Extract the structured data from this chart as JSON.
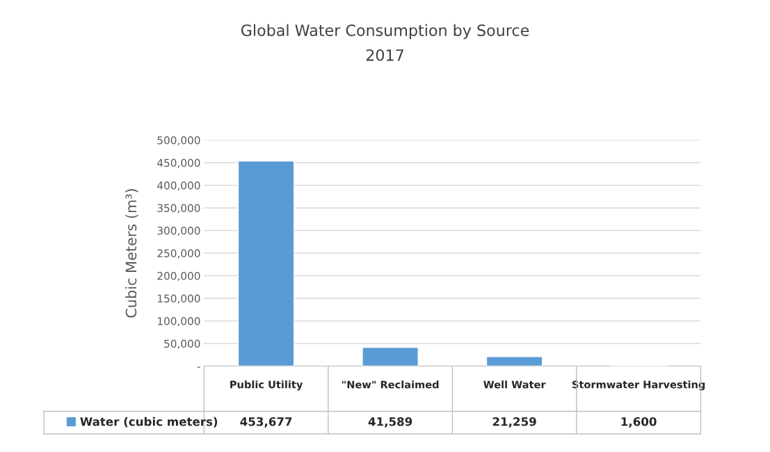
{
  "chart_data": {
    "type": "bar",
    "title": "Global Water Consumption by Source",
    "subtitle": "2017",
    "ylabel": "Cubic Meters (m³)",
    "categories": [
      "Public Utility",
      "\"New\" Reclaimed",
      "Well Water",
      "Stormwater Harvesting"
    ],
    "series": [
      {
        "name": "Water (cubic meters)",
        "color": "#5b9bd5",
        "values": [
          453677,
          41589,
          21259,
          1600
        ],
        "value_labels": [
          "453,677",
          "41,589",
          "21,259",
          "1,600"
        ]
      }
    ],
    "ylim": [
      0,
      500000
    ],
    "yticks": [
      {
        "value": 0,
        "label": "-"
      },
      {
        "value": 50000,
        "label": "50,000"
      },
      {
        "value": 100000,
        "label": "100,000"
      },
      {
        "value": 150000,
        "label": "150,000"
      },
      {
        "value": 200000,
        "label": "200,000"
      },
      {
        "value": 250000,
        "label": "250,000"
      },
      {
        "value": 300000,
        "label": "300,000"
      },
      {
        "value": 350000,
        "label": "350,000"
      },
      {
        "value": 400000,
        "label": "400,000"
      },
      {
        "value": 450000,
        "label": "450,000"
      },
      {
        "value": 500000,
        "label": "500,000"
      }
    ],
    "grid": "y",
    "legend": "bottom"
  }
}
